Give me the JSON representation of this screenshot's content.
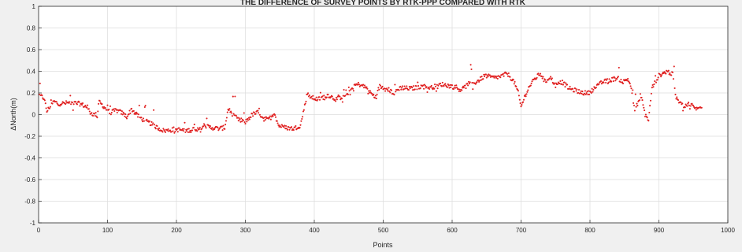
{
  "chart_data": {
    "type": "scatter",
    "title": "THE DIFFERENCE OF SURVEY POINTS BY RTK-PPP COMPARED WITH RTK",
    "xlabel": "Points",
    "ylabel": "ΔNorth(m)",
    "xlim": [
      0,
      1000
    ],
    "ylim": [
      -1,
      1
    ],
    "xticks": [
      "0",
      "100",
      "200",
      "300",
      "400",
      "500",
      "600",
      "700",
      "800",
      "900",
      "1000"
    ],
    "yticks": [
      "-1",
      "-0.8",
      "-0.6",
      "-0.4",
      "-0.2",
      "0",
      "0.2",
      "0.4",
      "0.6",
      "0.8",
      "1"
    ],
    "grid": true,
    "marker": ".",
    "color": "#e02020",
    "trend": [
      [
        1,
        0.18
      ],
      [
        8,
        0.15
      ],
      [
        12,
        0.03
      ],
      [
        16,
        0.07
      ],
      [
        22,
        0.12
      ],
      [
        30,
        0.1
      ],
      [
        45,
        0.11
      ],
      [
        60,
        0.1
      ],
      [
        70,
        0.07
      ],
      [
        75,
        0.02
      ],
      [
        80,
        0.0
      ],
      [
        85,
        0.0
      ],
      [
        88,
        0.12
      ],
      [
        92,
        0.09
      ],
      [
        98,
        0.05
      ],
      [
        105,
        0.02
      ],
      [
        112,
        0.04
      ],
      [
        120,
        0.02
      ],
      [
        128,
        -0.02
      ],
      [
        135,
        0.05
      ],
      [
        142,
        0.0
      ],
      [
        152,
        -0.05
      ],
      [
        162,
        -0.08
      ],
      [
        172,
        -0.12
      ],
      [
        182,
        -0.15
      ],
      [
        195,
        -0.14
      ],
      [
        205,
        -0.14
      ],
      [
        215,
        -0.15
      ],
      [
        225,
        -0.13
      ],
      [
        235,
        -0.14
      ],
      [
        240,
        -0.1
      ],
      [
        250,
        -0.12
      ],
      [
        262,
        -0.13
      ],
      [
        270,
        -0.12
      ],
      [
        275,
        0.05
      ],
      [
        282,
        0.0
      ],
      [
        290,
        -0.05
      ],
      [
        300,
        -0.07
      ],
      [
        310,
        0.0
      ],
      [
        318,
        0.02
      ],
      [
        325,
        -0.02
      ],
      [
        332,
        -0.05
      ],
      [
        338,
        -0.02
      ],
      [
        342,
        0.02
      ],
      [
        348,
        -0.1
      ],
      [
        358,
        -0.12
      ],
      [
        370,
        -0.13
      ],
      [
        380,
        -0.1
      ],
      [
        385,
        0.05
      ],
      [
        390,
        0.2
      ],
      [
        395,
        0.16
      ],
      [
        405,
        0.14
      ],
      [
        420,
        0.18
      ],
      [
        432,
        0.14
      ],
      [
        445,
        0.18
      ],
      [
        452,
        0.22
      ],
      [
        458,
        0.27
      ],
      [
        465,
        0.28
      ],
      [
        475,
        0.25
      ],
      [
        482,
        0.2
      ],
      [
        488,
        0.16
      ],
      [
        495,
        0.26
      ],
      [
        505,
        0.24
      ],
      [
        515,
        0.2
      ],
      [
        525,
        0.25
      ],
      [
        540,
        0.24
      ],
      [
        555,
        0.26
      ],
      [
        570,
        0.25
      ],
      [
        585,
        0.28
      ],
      [
        600,
        0.26
      ],
      [
        612,
        0.23
      ],
      [
        622,
        0.27
      ],
      [
        635,
        0.3
      ],
      [
        648,
        0.36
      ],
      [
        660,
        0.34
      ],
      [
        670,
        0.35
      ],
      [
        680,
        0.38
      ],
      [
        690,
        0.3
      ],
      [
        696,
        0.2
      ],
      [
        700,
        0.07
      ],
      [
        705,
        0.16
      ],
      [
        712,
        0.26
      ],
      [
        720,
        0.33
      ],
      [
        728,
        0.38
      ],
      [
        735,
        0.3
      ],
      [
        742,
        0.35
      ],
      [
        750,
        0.27
      ],
      [
        760,
        0.3
      ],
      [
        770,
        0.24
      ],
      [
        780,
        0.22
      ],
      [
        790,
        0.2
      ],
      [
        798,
        0.2
      ],
      [
        808,
        0.25
      ],
      [
        818,
        0.3
      ],
      [
        830,
        0.32
      ],
      [
        840,
        0.34
      ],
      [
        848,
        0.3
      ],
      [
        855,
        0.33
      ],
      [
        860,
        0.25
      ],
      [
        865,
        0.03
      ],
      [
        870,
        0.12
      ],
      [
        875,
        0.15
      ],
      [
        880,
        0.0
      ],
      [
        885,
        -0.05
      ],
      [
        890,
        0.25
      ],
      [
        900,
        0.36
      ],
      [
        912,
        0.4
      ],
      [
        920,
        0.37
      ],
      [
        925,
        0.15
      ],
      [
        935,
        0.08
      ],
      [
        945,
        0.1
      ],
      [
        955,
        0.05
      ],
      [
        962,
        0.07
      ]
    ]
  }
}
